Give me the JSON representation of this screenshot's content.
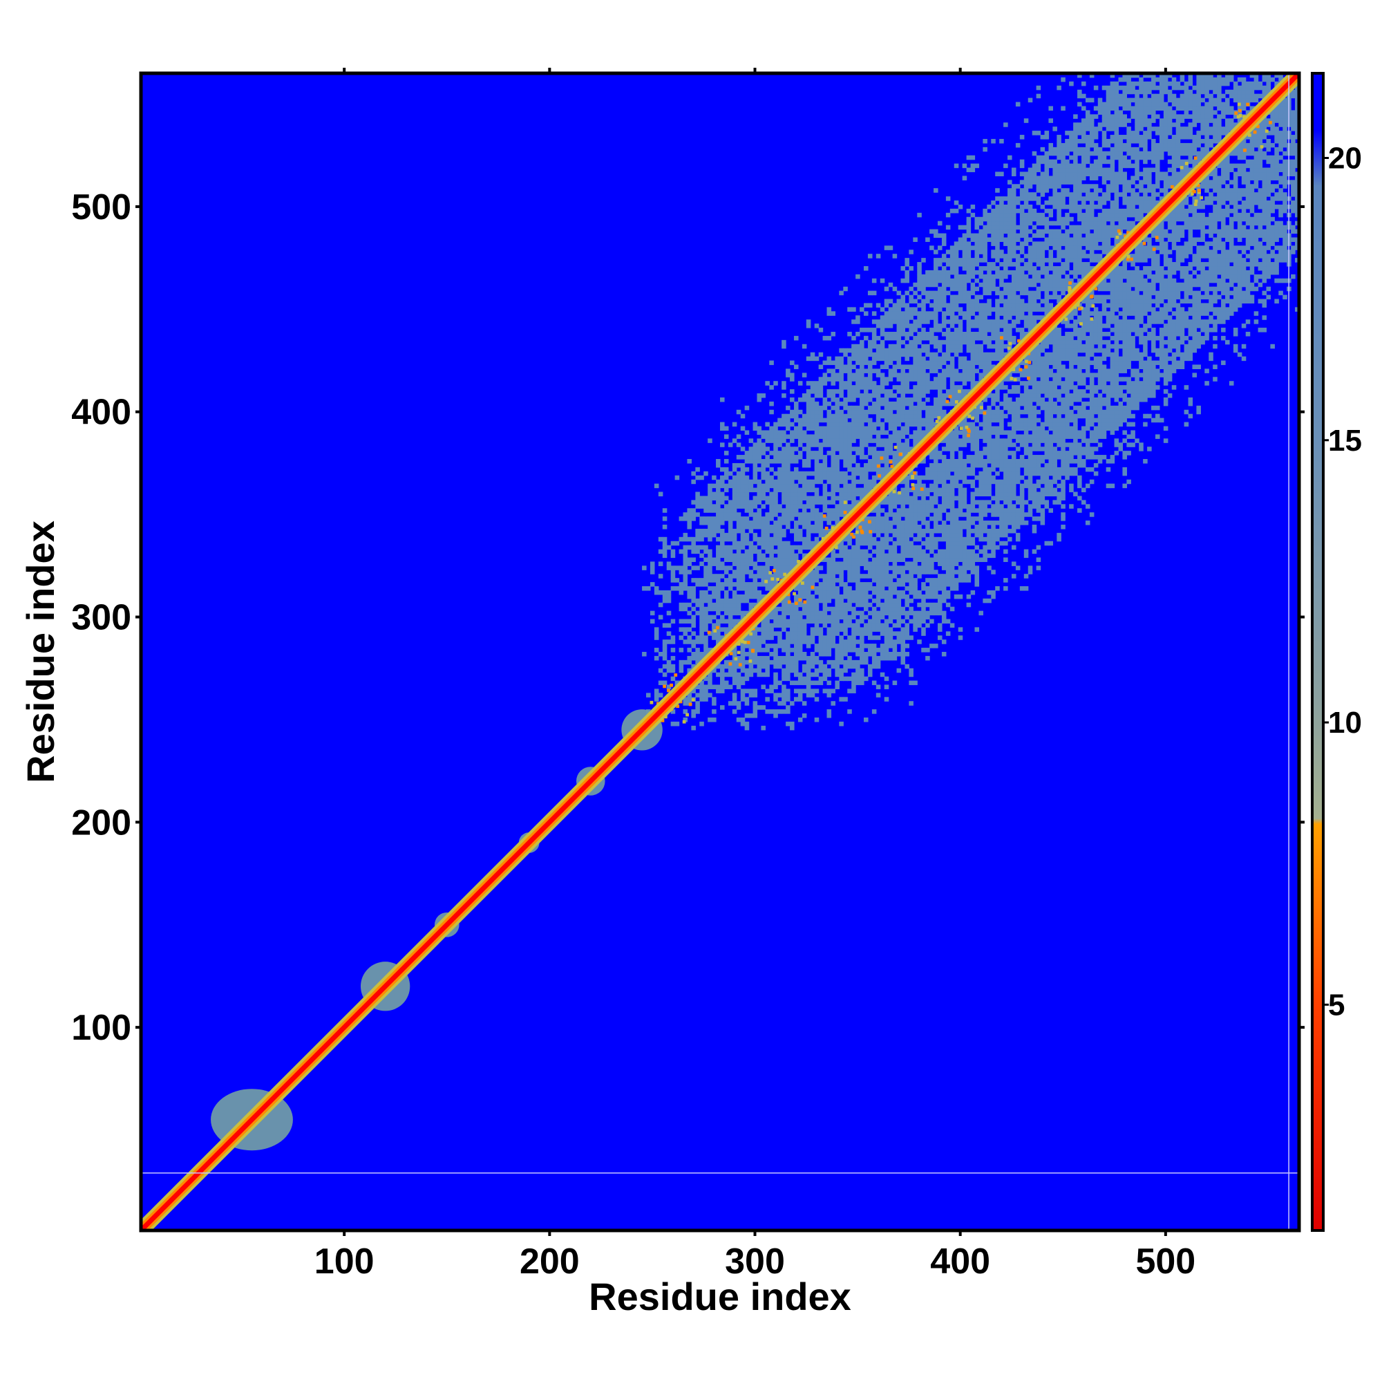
{
  "chart_data": {
    "type": "heatmap",
    "title": "",
    "xlabel": "Residue index",
    "ylabel": "Residue index",
    "xlim": [
      1,
      565
    ],
    "ylim": [
      1,
      565
    ],
    "x_ticks": [
      100,
      200,
      300,
      400,
      500
    ],
    "y_ticks": [
      100,
      200,
      300,
      400,
      500
    ],
    "colorbar": {
      "ticks": [
        5,
        10,
        15,
        20
      ],
      "range": [
        1,
        21.5
      ],
      "stops": [
        {
          "value": 1,
          "color": "#e00000"
        },
        {
          "value": 5,
          "color": "#ff4000"
        },
        {
          "value": 8.2,
          "color": "#ffa000"
        },
        {
          "value": 8.3,
          "color": "#a4b090"
        },
        {
          "value": 10.5,
          "color": "#8aa0a0"
        },
        {
          "value": 15,
          "color": "#6a90b8"
        },
        {
          "value": 19.5,
          "color": "#5a85bf"
        },
        {
          "value": 20.5,
          "color": "#0000ff"
        },
        {
          "value": 21.5,
          "color": "#0000ff"
        }
      ]
    },
    "background_color": "#0000ff",
    "diagonal_colors": {
      "core": "#ff0000",
      "edge": "#ff8a00",
      "halo": "#c8c040"
    },
    "contact_color": "#5b88be",
    "local_clusters": [
      {
        "center": [
          55,
          55
        ],
        "half_width": [
          20,
          15
        ]
      },
      {
        "center": [
          120,
          120
        ],
        "half_width": [
          12,
          12
        ]
      },
      {
        "center": [
          150,
          150
        ],
        "half_width": [
          6,
          6
        ]
      },
      {
        "center": [
          190,
          190
        ],
        "half_width": [
          5,
          5
        ]
      },
      {
        "center": [
          220,
          220
        ],
        "half_width": [
          7,
          7
        ]
      },
      {
        "center": [
          245,
          245
        ],
        "half_width": [
          10,
          10
        ]
      }
    ],
    "contact_region": {
      "x_range": [
        245,
        565
      ],
      "y_range": [
        245,
        565
      ],
      "description_band_halfwidth": 85
    },
    "helix_repeats": [
      260,
      288,
      316,
      344,
      372,
      400,
      428,
      456,
      484,
      512,
      540
    ],
    "reference_lines": {
      "horizontal_y": 29,
      "vertical_x": 560
    }
  }
}
